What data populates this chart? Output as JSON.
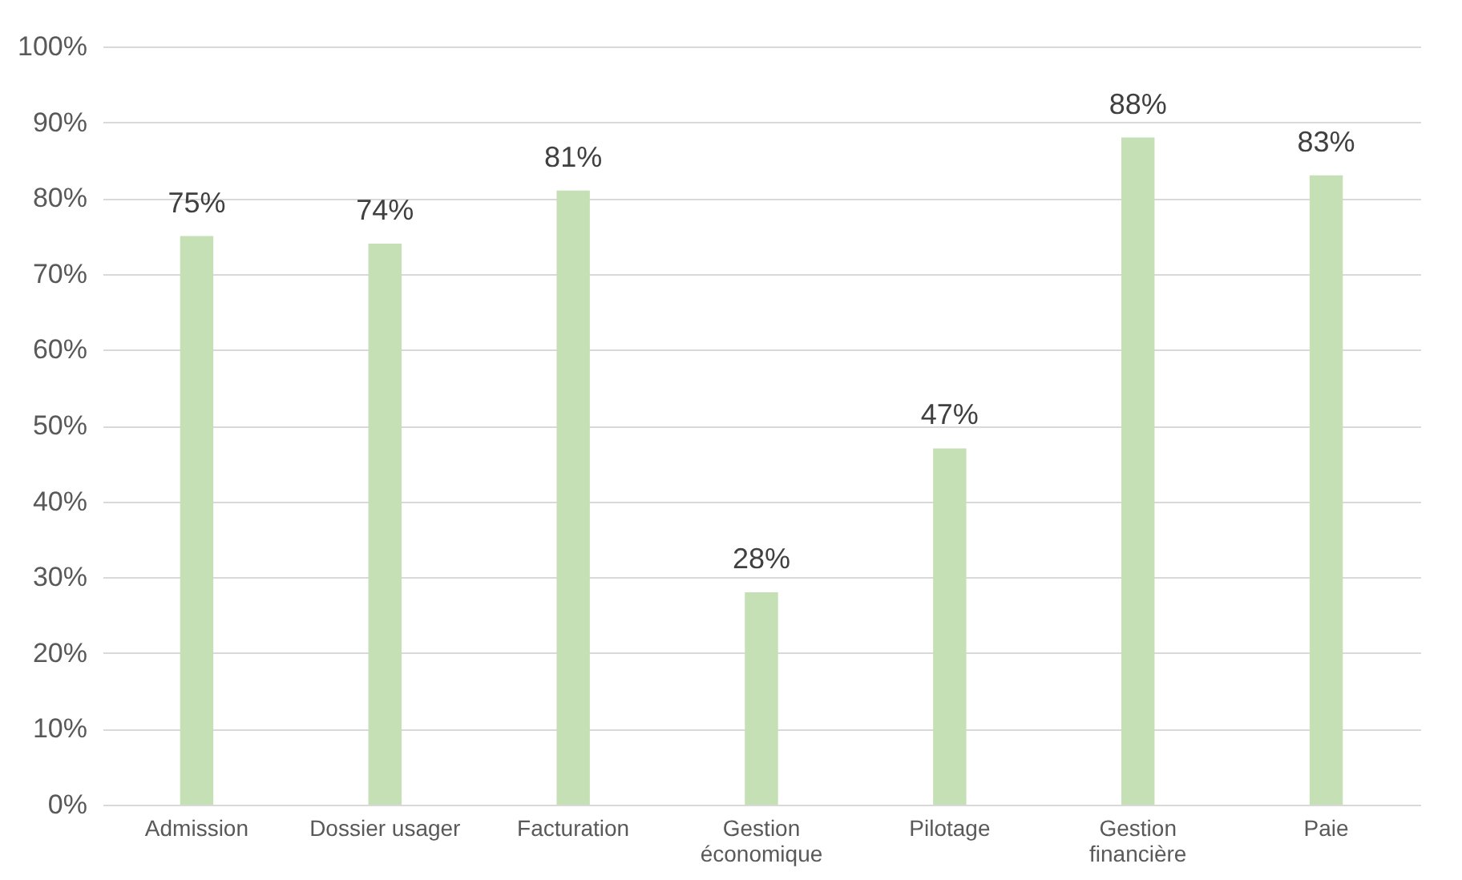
{
  "chart_data": {
    "type": "bar",
    "categories": [
      "Admission",
      "Dossier usager",
      "Facturation",
      "Gestion économique",
      "Pilotage",
      "Gestion financière",
      "Paie"
    ],
    "values": [
      75,
      74,
      81,
      28,
      47,
      88,
      83
    ],
    "value_labels": [
      "75%",
      "74%",
      "81%",
      "28%",
      "47%",
      "88%",
      "83%"
    ],
    "color": "#c5e0b4",
    "ylim": [
      0,
      100
    ],
    "yticks": [
      {
        "value": 0,
        "label": "0%"
      },
      {
        "value": 10,
        "label": "10%"
      },
      {
        "value": 20,
        "label": "20%"
      },
      {
        "value": 30,
        "label": "30%"
      },
      {
        "value": 40,
        "label": "40%"
      },
      {
        "value": 50,
        "label": "50%"
      },
      {
        "value": 60,
        "label": "60%"
      },
      {
        "value": 70,
        "label": "70%"
      },
      {
        "value": 80,
        "label": "80%"
      },
      {
        "value": 90,
        "label": "90%"
      },
      {
        "value": 100,
        "label": "100%"
      }
    ],
    "grid": "y"
  }
}
